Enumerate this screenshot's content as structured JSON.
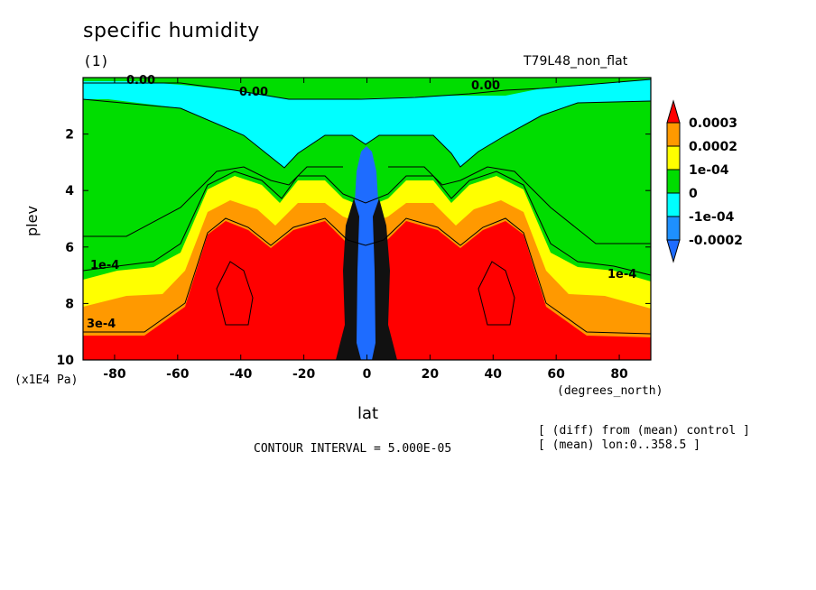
{
  "header": {
    "title": "specific humidity",
    "panel": "(1)",
    "experiment": "T79L48_non_flat"
  },
  "footer": {
    "contour_interval": "CONTOUR INTERVAL = 5.000E-05",
    "note_diff": "[ (diff) from (mean) control ]",
    "note_mean": "[ (mean) lon:0..358.5 ]"
  },
  "chart_data": {
    "type": "heatmap",
    "title": "specific humidity",
    "xlabel": "lat",
    "ylabel": "plev",
    "x_unit": "(degrees_north)",
    "y_unit": "(x1E4 Pa)",
    "x_ticks": [
      "-80",
      "-60",
      "-40",
      "-20",
      "0",
      "20",
      "40",
      "60",
      "80"
    ],
    "y_ticks": [
      "2",
      "4",
      "6",
      "8",
      "10"
    ],
    "xlim": [
      -90,
      90
    ],
    "ylim": [
      0,
      10
    ],
    "y_reversed": true,
    "colorbar": {
      "labels": [
        "0.0003",
        "0.0002",
        "1e-04",
        "0",
        "-1e-04",
        "-0.0002"
      ],
      "colors": [
        "#ff0000",
        "#ff9900",
        "#ffff00",
        "#00dd00",
        "#00ffff",
        "#1e90ff",
        "#ff0000",
        "#1e6cff"
      ]
    },
    "contour_labels": [
      "0.00",
      "0.00",
      "0.00",
      "1e-4",
      "1e-4",
      "3e-4"
    ]
  }
}
